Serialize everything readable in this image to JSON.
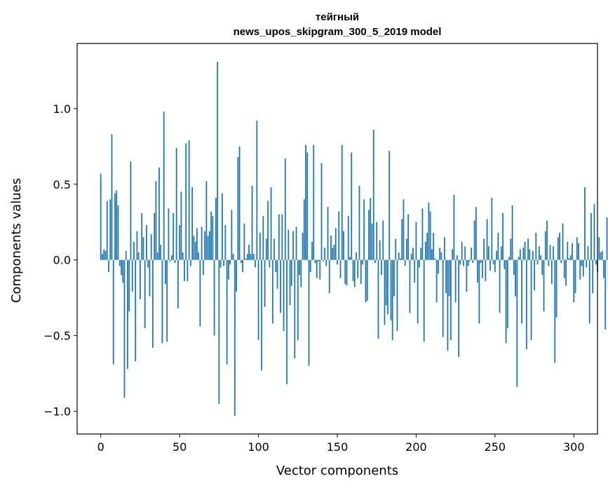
{
  "chart_data": {
    "type": "bar",
    "title_line1": "тейгный",
    "title_line2": "news_upos_skipgram_300_5_2019 model",
    "xlabel": "Vector components",
    "ylabel": "Components values",
    "xlim": [
      -15,
      315
    ],
    "ylim": [
      -1.15,
      1.43
    ],
    "xticks": [
      0,
      50,
      100,
      150,
      200,
      250,
      300
    ],
    "xtick_labels": [
      "0",
      "50",
      "100",
      "150",
      "200",
      "250",
      "300"
    ],
    "yticks": [
      -1.0,
      -0.5,
      0.0,
      0.5,
      1.0
    ],
    "ytick_labels": [
      "−1.0",
      "−0.5",
      "0.0",
      "0.5",
      "1.0"
    ],
    "bar_color": "#1f77b4",
    "grid": false,
    "values": [
      0.57,
      0.04,
      0.07,
      0.06,
      0.39,
      -0.08,
      0.4,
      0.83,
      -0.69,
      0.44,
      0.46,
      0.36,
      -0.04,
      -0.1,
      -0.15,
      -0.91,
      0.06,
      -0.72,
      -0.34,
      0.65,
      -0.21,
      0.12,
      -0.67,
      0.19,
      0.05,
      -0.26,
      0.31,
      0.15,
      -0.45,
      0.23,
      -0.05,
      -0.24,
      0.17,
      -0.58,
      0.31,
      0.52,
      0.05,
      0.61,
      0.1,
      -0.55,
      0.98,
      -0.16,
      -0.54,
      0.34,
      -0.01,
      0.03,
      0.31,
      -0.02,
      0.74,
      -0.32,
      0.23,
      0.45,
      0.05,
      -0.14,
      0.77,
      -0.14,
      0.79,
      -0.04,
      0.48,
      0.16,
      0.12,
      0.21,
      0.05,
      -0.44,
      0.22,
      -0.1,
      0.19,
      0.52,
      0.16,
      0.19,
      0.32,
      0.29,
      -0.5,
      0.41,
      1.31,
      -0.95,
      -0.05,
      0.44,
      -0.04,
      0.23,
      -0.69,
      -0.13,
      -0.03,
      0.33,
      0.04,
      -1.03,
      -0.21,
      0.68,
      0.75,
      -0.02,
      -0.08,
      0.24,
      0.01,
      0.04,
      0.1,
      0.04,
      0.49,
      0.04,
      -0.05,
      0.92,
      -0.53,
      0.18,
      -0.73,
      0.29,
      -0.31,
      0.14,
      0.39,
      -0.05,
      0.48,
      -0.42,
      0.14,
      -0.08,
      -0.19,
      0.3,
      -0.35,
      0.3,
      -0.47,
      0.67,
      -0.82,
      0.2,
      -0.3,
      -0.17,
      0.19,
      -0.65,
      0.22,
      -0.53,
      -0.1,
      -0.18,
      0.18,
      0.4,
      0.76,
      0.71,
      -0.7,
      -0.08,
      0.12,
      0.76,
      -0.02,
      -0.12,
      -0.01,
      -0.13,
      0.64,
      -0.01,
      0.08,
      -0.04,
      0.35,
      -0.22,
      0.16,
      0.08,
      0.1,
      0.21,
      -0.03,
      0.32,
      -0.12,
      0.76,
      0.19,
      -0.16,
      -0.17,
      0.29,
      0.02,
      0.71,
      -0.14,
      -0.18,
      0.05,
      -0.12,
      0.49,
      -0.16,
      -0.03,
      0.4,
      -0.28,
      -0.27,
      0.33,
      0.41,
      0.24,
      0.86,
      -0.02,
      0.25,
      -0.52,
      0.13,
      -0.1,
      0.26,
      -0.43,
      -0.3,
      -0.36,
      0.72,
      -0.4,
      -0.53,
      -0.24,
      0.14,
      -0.47,
      0.05,
      0.01,
      0.27,
      0.4,
      -0.04,
      0.14,
      0.3,
      -0.35,
      0.04,
      0.08,
      -0.15,
      0.25,
      -0.42,
      -0.05,
      0.08,
      0.34,
      -0.54,
      0.12,
      0.18,
      0.38,
      0.32,
      0.07,
      0.18,
      0.01,
      -0.28,
      -0.09,
      0.08,
      0.05,
      -0.51,
      0.15,
      -0.22,
      -0.6,
      -0.24,
      -0.53,
      0.07,
      0.43,
      -0.28,
      0.03,
      -0.64,
      -0.03,
      0.12,
      -0.04,
      0.09,
      -0.21,
      -0.04,
      -0.01,
      0.08,
      -0.02,
      0.26,
      0.35,
      -0.15,
      -0.42,
      -0.02,
      -0.12,
      0.14,
      -0.14,
      0.27,
      0.09,
      -0.07,
      0.41,
      -0.03,
      -0.08,
      0.06,
      0.18,
      -0.35,
      0.09,
      0.31,
      -0.06,
      -0.55,
      -0.45,
      0.02,
      0.14,
      0.36,
      -0.1,
      -0.24,
      -0.84,
      0.02,
      0.07,
      -0.42,
      0.08,
      0.12,
      -0.59,
      0.14,
      0.07,
      -0.53,
      0.06,
      -0.2,
      0.18,
      -0.03,
      0.09,
      0.03,
      -0.1,
      -0.34,
      0.19,
      0.26,
      -0.04,
      0.1,
      -0.16,
      0.09,
      -0.68,
      -0.38,
      0.15,
      0.18,
      -0.02,
      0.24,
      -0.12,
      -0.17,
      0.12,
      0.01,
      0.03,
      0.11,
      -0.28,
      -0.22,
      0.15,
      0.11,
      -0.13,
      -0.04,
      -0.11,
      0.48,
      -0.05,
      0.09,
      -0.42,
      0.31,
      -0.22,
      0.37,
      -0.03,
      -0.08,
      0.15,
      0.05,
      0.06,
      -0.12,
      -0.46,
      0.28,
      -0.2
    ]
  }
}
